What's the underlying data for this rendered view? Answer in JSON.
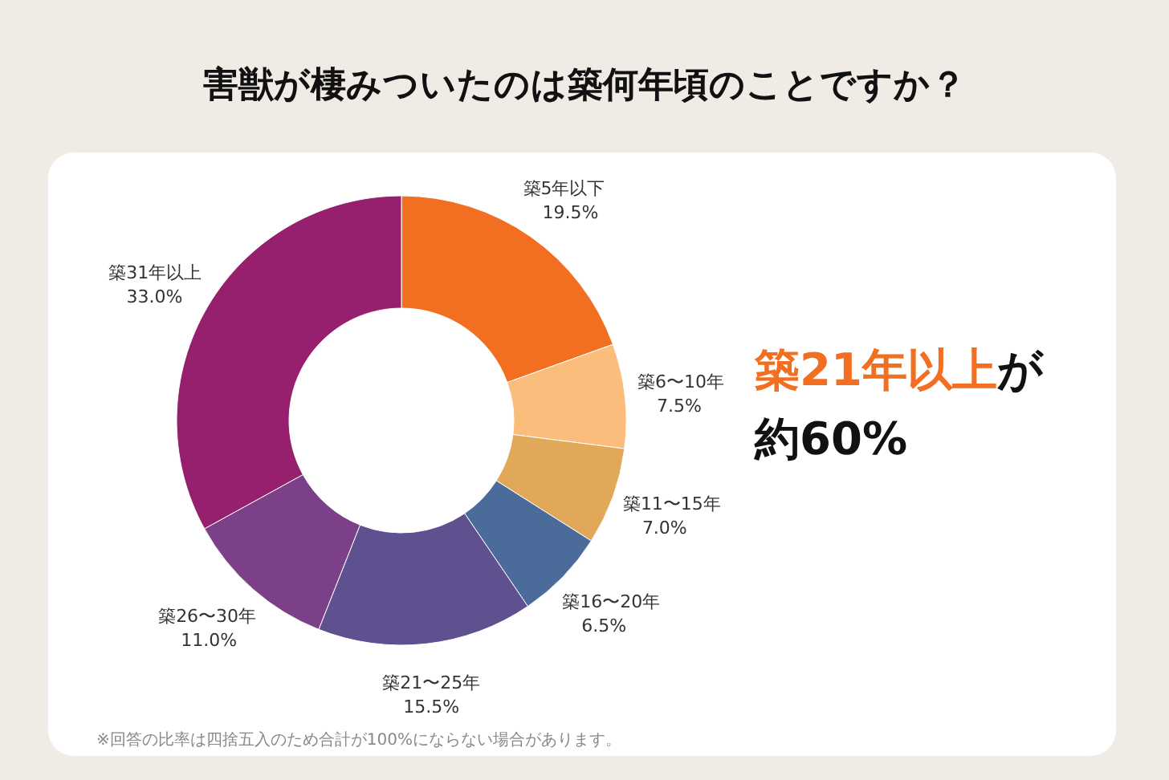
{
  "chart_data": {
    "type": "donut",
    "title": "害獣が棲みついたのは築何年頃のことですか？",
    "categories": [
      "築5年以下",
      "築6〜10年",
      "築11〜15年",
      "築16〜20年",
      "築21〜25年",
      "築26〜30年",
      "築31年以上"
    ],
    "values": [
      19.5,
      7.5,
      7.0,
      6.5,
      15.5,
      11.0,
      33.0
    ],
    "colors": [
      "#f26f21",
      "#fbbd7c",
      "#e2a85a",
      "#4b6c9a",
      "#5f5190",
      "#7c4089",
      "#961f6e"
    ],
    "value_labels": [
      "19.5%",
      "7.5%",
      "7.0%",
      "6.5%",
      "15.5%",
      "11.0%",
      "33.0%"
    ],
    "annotations": [
      "**築21年以上**が",
      "約60%",
      "※回答の比率は四捨五入のため合計が100%にならない場合があります。"
    ],
    "legend": false
  }
}
